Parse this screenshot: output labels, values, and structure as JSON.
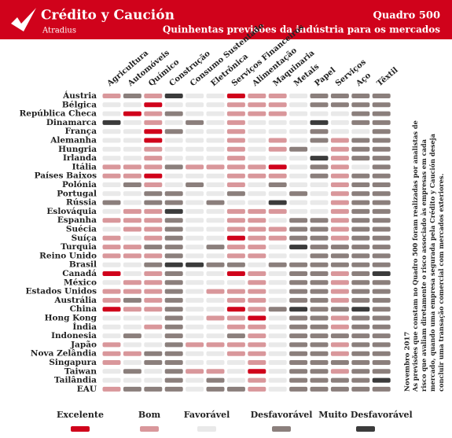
{
  "chart_data": {
    "type": "heatmap",
    "brand": "Crédito y Caución",
    "brand_sub": "Atradius",
    "title": "Quadro 500",
    "subtitle": "Quinhentas previsões da indústria para os mercados",
    "columns": [
      "Agricultura",
      "Automóveis",
      "Químico",
      "Construção",
      "Consumo Sustentado",
      "Eletrônica",
      "Serviços Financeiros",
      "Alimentação",
      "Maquinaria",
      "Metais",
      "Papel",
      "Serviços",
      "Aço",
      "Têxtil"
    ],
    "legend": [
      {
        "label": "Excelente",
        "color": "#d0021b"
      },
      {
        "label": "Bom",
        "color": "#d9979b"
      },
      {
        "label": "Favorável",
        "color": "#e9e9e9"
      },
      {
        "label": "Desfavorável",
        "color": "#8b7f7c"
      },
      {
        "label": "Muito Desfavorável",
        "color": "#3b3b3b"
      }
    ],
    "rows": [
      {
        "country": "Áustria",
        "ratings": [
          1,
          3,
          1,
          4,
          2,
          2,
          0,
          1,
          1,
          2,
          3,
          3,
          3,
          3
        ]
      },
      {
        "country": "Bélgica",
        "ratings": [
          2,
          2,
          0,
          2,
          2,
          2,
          1,
          1,
          1,
          2,
          3,
          3,
          3,
          3
        ]
      },
      {
        "country": "República Checa",
        "ratings": [
          2,
          0,
          1,
          3,
          2,
          2,
          1,
          1,
          1,
          2,
          2,
          2,
          3,
          3
        ]
      },
      {
        "country": "Dinamarca",
        "ratings": [
          4,
          2,
          1,
          2,
          3,
          2,
          1,
          2,
          2,
          2,
          4,
          2,
          3,
          3
        ]
      },
      {
        "country": "França",
        "ratings": [
          2,
          2,
          0,
          3,
          2,
          2,
          1,
          2,
          2,
          2,
          3,
          2,
          2,
          3
        ]
      },
      {
        "country": "Alemanha",
        "ratings": [
          2,
          2,
          0,
          2,
          2,
          2,
          1,
          2,
          1,
          2,
          3,
          1,
          3,
          3
        ]
      },
      {
        "country": "Hungria",
        "ratings": [
          2,
          2,
          1,
          2,
          2,
          2,
          1,
          2,
          1,
          3,
          2,
          1,
          3,
          3
        ]
      },
      {
        "country": "Irlanda",
        "ratings": [
          2,
          2,
          1,
          2,
          2,
          2,
          1,
          2,
          2,
          2,
          4,
          1,
          3,
          3
        ]
      },
      {
        "country": "Itália",
        "ratings": [
          1,
          1,
          1,
          3,
          1,
          1,
          1,
          1,
          0,
          2,
          3,
          1,
          2,
          3
        ]
      },
      {
        "country": "Países Baixos",
        "ratings": [
          1,
          1,
          0,
          2,
          2,
          2,
          1,
          1,
          1,
          2,
          3,
          1,
          3,
          3
        ]
      },
      {
        "country": "Polónia",
        "ratings": [
          2,
          3,
          1,
          2,
          3,
          2,
          1,
          2,
          3,
          2,
          2,
          1,
          3,
          3
        ]
      },
      {
        "country": "Portugal",
        "ratings": [
          2,
          2,
          3,
          3,
          2,
          2,
          3,
          2,
          2,
          3,
          2,
          1,
          3,
          3
        ]
      },
      {
        "country": "Rússia",
        "ratings": [
          3,
          2,
          3,
          3,
          2,
          3,
          2,
          2,
          4,
          2,
          2,
          1,
          3,
          3
        ]
      },
      {
        "country": "Eslováquia",
        "ratings": [
          2,
          1,
          1,
          4,
          2,
          2,
          1,
          1,
          1,
          2,
          2,
          1,
          3,
          3
        ]
      },
      {
        "country": "Espanha",
        "ratings": [
          1,
          1,
          1,
          3,
          2,
          2,
          1,
          1,
          2,
          3,
          3,
          1,
          3,
          3
        ]
      },
      {
        "country": "Suécia",
        "ratings": [
          2,
          1,
          1,
          3,
          2,
          2,
          1,
          1,
          1,
          3,
          3,
          1,
          3,
          3
        ]
      },
      {
        "country": "Suíça",
        "ratings": [
          1,
          2,
          1,
          3,
          2,
          2,
          0,
          1,
          1,
          3,
          3,
          1,
          3,
          3
        ]
      },
      {
        "country": "Turquia",
        "ratings": [
          1,
          1,
          3,
          3,
          2,
          3,
          1,
          1,
          2,
          4,
          3,
          3,
          3,
          3
        ]
      },
      {
        "country": "Reino Unido",
        "ratings": [
          1,
          1,
          1,
          3,
          2,
          2,
          1,
          1,
          2,
          2,
          3,
          3,
          3,
          3
        ]
      },
      {
        "country": "Brasil",
        "ratings": [
          2,
          2,
          3,
          4,
          4,
          3,
          3,
          2,
          3,
          3,
          3,
          3,
          3,
          3
        ]
      },
      {
        "country": "Canadá",
        "ratings": [
          0,
          2,
          1,
          3,
          2,
          2,
          0,
          1,
          2,
          3,
          3,
          1,
          3,
          4
        ]
      },
      {
        "country": "México",
        "ratings": [
          2,
          1,
          1,
          3,
          2,
          2,
          2,
          1,
          2,
          3,
          3,
          1,
          3,
          3
        ]
      },
      {
        "country": "Estados Unidos",
        "ratings": [
          1,
          1,
          1,
          3,
          2,
          1,
          1,
          1,
          2,
          3,
          3,
          1,
          3,
          3
        ]
      },
      {
        "country": "Austrália",
        "ratings": [
          1,
          3,
          1,
          3,
          2,
          2,
          1,
          1,
          2,
          3,
          3,
          1,
          3,
          3
        ]
      },
      {
        "country": "China",
        "ratings": [
          0,
          1,
          1,
          3,
          2,
          2,
          0,
          1,
          3,
          4,
          3,
          3,
          4,
          3
        ]
      },
      {
        "country": "Hong Kong",
        "ratings": [
          2,
          2,
          2,
          3,
          2,
          1,
          1,
          0,
          2,
          3,
          3,
          1,
          3,
          3
        ]
      },
      {
        "country": "Índia",
        "ratings": [
          2,
          2,
          1,
          3,
          2,
          2,
          1,
          1,
          2,
          3,
          3,
          1,
          3,
          3
        ]
      },
      {
        "country": "Indonesia",
        "ratings": [
          2,
          3,
          2,
          3,
          2,
          2,
          3,
          1,
          2,
          3,
          3,
          3,
          3,
          3
        ]
      },
      {
        "country": "Japão",
        "ratings": [
          1,
          2,
          2,
          3,
          1,
          1,
          1,
          1,
          2,
          3,
          3,
          1,
          3,
          3
        ]
      },
      {
        "country": "Nova Zelândia",
        "ratings": [
          1,
          1,
          3,
          3,
          2,
          2,
          1,
          1,
          2,
          3,
          3,
          1,
          3,
          3
        ]
      },
      {
        "country": "Singapura",
        "ratings": [
          1,
          2,
          3,
          3,
          2,
          2,
          2,
          1,
          2,
          3,
          3,
          3,
          3,
          3
        ]
      },
      {
        "country": "Taiwan",
        "ratings": [
          2,
          3,
          2,
          3,
          1,
          1,
          2,
          0,
          2,
          3,
          3,
          1,
          3,
          3
        ]
      },
      {
        "country": "Tailândia",
        "ratings": [
          2,
          2,
          2,
          3,
          2,
          3,
          2,
          1,
          2,
          3,
          3,
          3,
          3,
          4
        ]
      },
      {
        "country": "EAU",
        "ratings": [
          1,
          3,
          3,
          3,
          2,
          3,
          3,
          1,
          2,
          3,
          3,
          3,
          3,
          3
        ]
      }
    ],
    "note": [
      "Novembro 2017",
      "As previsões que constam no Quadro 500 foram realizadas por analistas de",
      "risco que avaliam diretamente o risco associado às empresas em cada",
      "mercado, quando uma empresa segurada pela Crédito y Caución deseja",
      "concluir uma transação comercial com mercados exteriores."
    ]
  }
}
